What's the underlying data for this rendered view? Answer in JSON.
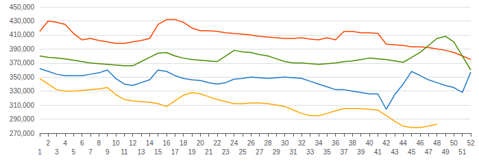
{
  "chart_data": {
    "type": "line",
    "x": [
      1,
      2,
      3,
      4,
      5,
      6,
      7,
      8,
      9,
      10,
      11,
      12,
      13,
      14,
      15,
      16,
      17,
      18,
      19,
      20,
      21,
      22,
      23,
      24,
      25,
      26,
      27,
      28,
      29,
      30,
      31,
      32,
      33,
      34,
      35,
      36,
      37,
      38,
      39,
      40,
      41,
      42,
      43,
      44,
      45,
      46,
      47,
      48,
      49,
      50,
      51,
      52
    ],
    "series": [
      {
        "color": "#FF4500",
        "values": [
          415000,
          430000,
          428000,
          425000,
          412000,
          403000,
          405000,
          402000,
          400000,
          398000,
          398000,
          400000,
          402000,
          405000,
          425000,
          432000,
          432000,
          428000,
          420000,
          416000,
          416000,
          415000,
          413000,
          412000,
          411000,
          410000,
          408000,
          407000,
          406000,
          405000,
          405000,
          406000,
          404000,
          403000,
          406000,
          403000,
          415000,
          415000,
          413000,
          413000,
          412000,
          397000,
          396000,
          395000,
          393000,
          393000,
          392000,
          390000,
          388000,
          385000,
          380000,
          375000
        ]
      },
      {
        "color": "#4B8B00",
        "values": [
          380000,
          378000,
          377000,
          376000,
          374000,
          372000,
          370000,
          369000,
          368000,
          367000,
          366000,
          366000,
          372000,
          378000,
          384000,
          385000,
          380000,
          377000,
          375000,
          374000,
          373000,
          372000,
          380000,
          388000,
          386000,
          385000,
          382000,
          380000,
          376000,
          372000,
          370000,
          370000,
          369000,
          368000,
          369000,
          370000,
          372000,
          373000,
          375000,
          377000,
          376000,
          375000,
          373000,
          371000,
          378000,
          385000,
          395000,
          405000,
          408000,
          400000,
          380000,
          360000
        ]
      },
      {
        "color": "#1F78C8",
        "values": [
          362000,
          358000,
          354000,
          352000,
          352000,
          352000,
          354000,
          356000,
          360000,
          348000,
          340000,
          338000,
          342000,
          346000,
          360000,
          358000,
          352000,
          348000,
          346000,
          345000,
          342000,
          340000,
          342000,
          347000,
          348000,
          350000,
          349000,
          348000,
          349000,
          350000,
          349000,
          348000,
          344000,
          340000,
          336000,
          332000,
          332000,
          330000,
          328000,
          326000,
          326000,
          304000,
          325000,
          340000,
          358000,
          352000,
          346000,
          342000,
          338000,
          335000,
          328000,
          357000
        ]
      },
      {
        "color": "#FFA500",
        "values": [
          348000,
          340000,
          332000,
          330000,
          330000,
          331000,
          332000,
          333000,
          335000,
          325000,
          318000,
          316000,
          315000,
          314000,
          312000,
          308000,
          316000,
          324000,
          328000,
          326000,
          322000,
          318000,
          315000,
          312000,
          312000,
          313000,
          313000,
          312000,
          310000,
          308000,
          303000,
          298000,
          295000,
          295000,
          298000,
          302000,
          305000,
          305000,
          305000,
          304000,
          303000,
          295000,
          287000,
          280000,
          278000,
          278000,
          280000,
          283000,
          null,
          null,
          null,
          null
        ]
      }
    ],
    "xlim": [
      1,
      52
    ],
    "xticks": [
      1,
      2,
      3,
      4,
      5,
      6,
      7,
      8,
      9,
      10,
      11,
      12,
      13,
      14,
      15,
      16,
      17,
      18,
      19,
      20,
      21,
      22,
      23,
      24,
      25,
      26,
      27,
      28,
      29,
      30,
      31,
      32,
      33,
      34,
      35,
      36,
      37,
      38,
      39,
      40,
      41,
      42,
      43,
      44,
      45,
      46,
      47,
      48,
      49,
      50,
      51,
      52
    ],
    "ylim": [
      270000,
      450000
    ],
    "yticks": [
      {
        "value": 270000,
        "label": "270,000"
      },
      {
        "value": 290000,
        "label": "290,000"
      },
      {
        "value": 310000,
        "label": "310,000"
      },
      {
        "value": 330000,
        "label": "330,000"
      },
      {
        "value": 350000,
        "label": "350,000"
      },
      {
        "value": 370000,
        "label": "370,000"
      },
      {
        "value": 390000,
        "label": "390,000"
      },
      {
        "value": 410000,
        "label": "410,000"
      },
      {
        "value": 430000,
        "label": "430,000"
      },
      {
        "value": 450000,
        "label": "450,000"
      }
    ],
    "grid": true
  }
}
